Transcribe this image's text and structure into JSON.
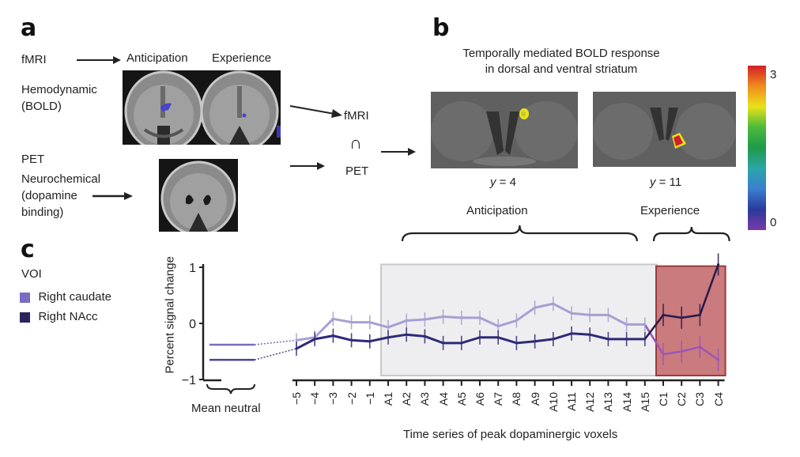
{
  "panels": {
    "a": {
      "letter": "a",
      "fmri_label": "fMRI",
      "hemodynamic_label": "Hemodynamic",
      "bold_label": "(BOLD)",
      "anticipation_label": "Anticipation",
      "experience_label": "Experience",
      "pet_label": "PET",
      "neurochemical_label": "Neurochemical",
      "dopamine_label": "(dopamine",
      "binding_label": "binding)",
      "intersection_top": "fMRI",
      "intersection_symbol": "∩",
      "intersection_bottom": "PET"
    },
    "b": {
      "letter": "b",
      "title_line1": "Temporally mediated BOLD response",
      "title_line2": "in dorsal and ventral striatum",
      "slice1_caption_var": "y",
      "slice1_caption_val": " = 4",
      "slice2_caption_var": "y",
      "slice2_caption_val": " = 11",
      "colorbar_max": "3",
      "colorbar_min": "0",
      "colorbar_colors": [
        "#d21f2a",
        "#f08a1c",
        "#e8e21a",
        "#4cba3c",
        "#1f9a4a",
        "#2aa6a8",
        "#3a7fd0",
        "#2a3a9a",
        "#7a3aa8"
      ]
    },
    "c": {
      "letter": "c",
      "legend_title": "VOI",
      "legend": [
        {
          "label": "Right caudate",
          "color": "#7a6cc0"
        },
        {
          "label": "Right NAcc",
          "color": "#2a255e"
        }
      ],
      "anticipation_label": "Anticipation",
      "experience_label": "Experience",
      "mean_neutral_label": "Mean neutral"
    }
  },
  "chart_data": {
    "type": "line",
    "title": "",
    "xlabel": "Time series of peak dopaminergic voxels",
    "ylabel": "Percent signal change",
    "ylim": [
      -1,
      1
    ],
    "yticks": [
      "1",
      "0",
      "−1"
    ],
    "ytick_values": [
      1,
      0,
      -1
    ],
    "categories": [
      "−5",
      "−4",
      "−3",
      "−2",
      "−1",
      "A1",
      "A2",
      "A3",
      "A4",
      "A5",
      "A6",
      "A7",
      "A8",
      "A9",
      "A10",
      "A11",
      "A12",
      "A13",
      "A14",
      "A15",
      "C1",
      "C2",
      "C3",
      "C4"
    ],
    "mean_neutral": {
      "Right caudate": -0.38,
      "Right NAcc": -0.65
    },
    "shaded_regions": [
      {
        "label": "Anticipation",
        "from": "A1",
        "to": "A15",
        "color": "#eeeef0"
      },
      {
        "label": "Experience",
        "from": "C1",
        "to": "C4",
        "color": "#c97b7e"
      }
    ],
    "series": [
      {
        "name": "Right caudate",
        "color": "#a79fd2",
        "experience_color": "#9b55b8",
        "values": [
          -0.3,
          -0.25,
          0.08,
          0.02,
          0.02,
          -0.07,
          0.05,
          0.07,
          0.12,
          0.1,
          0.1,
          -0.05,
          0.05,
          0.28,
          0.35,
          0.18,
          0.15,
          0.15,
          -0.02,
          -0.02,
          -0.55,
          -0.5,
          -0.42,
          -0.65
        ]
      },
      {
        "name": "Right NAcc",
        "color": "#2e2a78",
        "experience_color": "#2a1a4a",
        "values": [
          -0.45,
          -0.28,
          -0.22,
          -0.3,
          -0.32,
          -0.25,
          -0.2,
          -0.23,
          -0.35,
          -0.35,
          -0.25,
          -0.25,
          -0.35,
          -0.32,
          -0.28,
          -0.18,
          -0.2,
          -0.28,
          -0.28,
          -0.28,
          0.15,
          0.1,
          0.15,
          1.05
        ]
      }
    ],
    "legend_position": "left"
  }
}
